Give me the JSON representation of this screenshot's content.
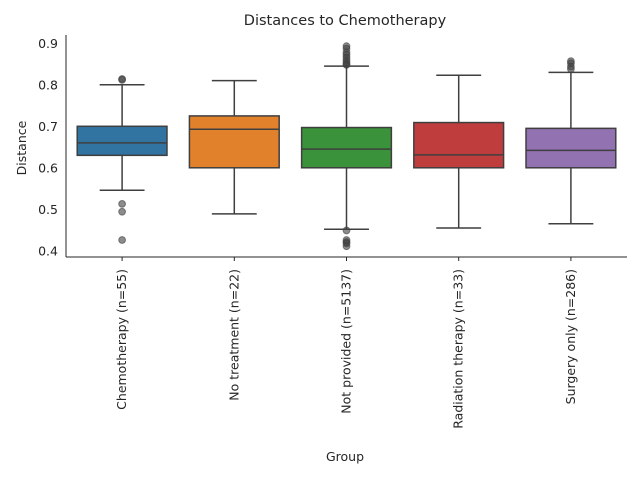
{
  "chart_data": {
    "type": "box",
    "title": "Distances to Chemotherapy",
    "xlabel": "Group",
    "ylabel": "Distance",
    "ylim": [
      0.385,
      0.92
    ],
    "yticks": [
      "0.4",
      "0.5",
      "0.6",
      "0.7",
      "0.8",
      "0.9"
    ],
    "grid": false,
    "categories": [
      "Chemotherapy (n=55)",
      "No treatment (n=22)",
      "Not provided (n=5137)",
      "Radiation therapy (n=33)",
      "Surgery only (n=286)"
    ],
    "series": [
      {
        "color": "#3274a1",
        "whisker_low": 0.546,
        "q1": 0.63,
        "median": 0.66,
        "q3": 0.7,
        "whisker_high": 0.8,
        "outliers": [
          0.812,
          0.814,
          0.513,
          0.494,
          0.426
        ]
      },
      {
        "color": "#e1812c",
        "whisker_low": 0.489,
        "q1": 0.6,
        "median": 0.693,
        "q3": 0.725,
        "whisker_high": 0.81,
        "outliers": []
      },
      {
        "color": "#3a923a",
        "whisker_low": 0.452,
        "q1": 0.6,
        "median": 0.645,
        "q3": 0.697,
        "whisker_high": 0.845,
        "outliers": [
          0.893,
          0.887,
          0.878,
          0.872,
          0.866,
          0.86,
          0.855,
          0.85,
          0.848,
          0.449,
          0.426,
          0.421,
          0.418,
          0.411
        ]
      },
      {
        "color": "#c03d3e",
        "whisker_low": 0.455,
        "q1": 0.6,
        "median": 0.631,
        "q3": 0.709,
        "whisker_high": 0.823,
        "outliers": []
      },
      {
        "color": "#9372b2",
        "whisker_low": 0.465,
        "q1": 0.6,
        "median": 0.642,
        "q3": 0.695,
        "whisker_high": 0.83,
        "outliers": [
          0.857,
          0.852,
          0.844,
          0.838
        ]
      }
    ]
  }
}
